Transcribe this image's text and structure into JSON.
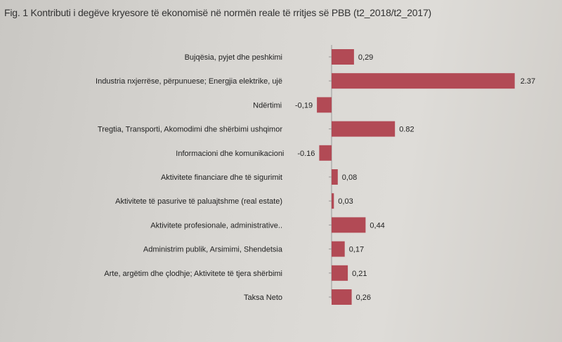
{
  "chart_data": {
    "type": "bar",
    "orientation": "horizontal",
    "title": "Fig. 1 Kontributi i degëve kryesore të ekonomisë në normën reale të rritjes së PBB (t2_2018/t2_2017)",
    "categories": [
      "Bujqësia, pyjet dhe peshkimi",
      "Industria nxjerrëse, përpunuese; Energjia elektrike, ujë",
      "Ndërtimi",
      "Tregtia, Transporti, Akomodimi dhe shërbimi ushqimor",
      "Informacioni dhe komunikacioni",
      "Aktivitete financiare dhe të sigurimit",
      "Aktivitete të pasurive të paluajtshme (real estate)",
      "Aktivitete profesionale, administrative..",
      "Administrim publik, Arsimimi, Shendetsia",
      "Arte, argëtim dhe çlodhje; Aktivitete të tjera shërbimi",
      "Taksa Neto"
    ],
    "values": [
      0.29,
      2.37,
      -0.19,
      0.82,
      -0.16,
      0.08,
      0.03,
      0.44,
      0.17,
      0.21,
      0.26
    ],
    "value_labels": [
      "0,29",
      "2.37",
      "-0,19",
      "0.82",
      "-0.16",
      "0,08",
      "0,03",
      "0,44",
      "0,17",
      "0,21",
      "0,26"
    ],
    "bar_color": "#b24a55",
    "axis_color": "#999999",
    "grid": false,
    "legend": "none"
  }
}
